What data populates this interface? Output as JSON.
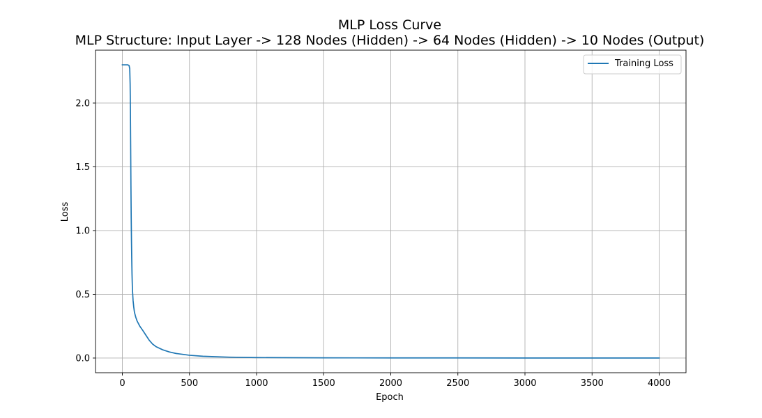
{
  "chart_data": {
    "type": "line",
    "title": "MLP Loss Curve",
    "subtitle": "MLP Structure: Input Layer -> 128 Nodes (Hidden) -> 64 Nodes (Hidden) -> 10 Nodes (Output)",
    "xlabel": "Epoch",
    "ylabel": "Loss",
    "xlim": [
      -200,
      4200
    ],
    "ylim": [
      -0.115,
      2.415
    ],
    "xticks": [
      0,
      500,
      1000,
      1500,
      2000,
      2500,
      3000,
      3500,
      4000
    ],
    "xtick_labels": [
      "0",
      "500",
      "1000",
      "1500",
      "2000",
      "2500",
      "3000",
      "3500",
      "4000"
    ],
    "yticks": [
      0.0,
      0.5,
      1.0,
      1.5,
      2.0
    ],
    "ytick_labels": [
      "0.0",
      "0.5",
      "1.0",
      "1.5",
      "2.0"
    ],
    "grid": true,
    "legend_position": "top-right",
    "series": [
      {
        "name": "Training Loss",
        "color": "#1f77b4",
        "x": [
          0,
          20,
          40,
          50,
          55,
          58,
          60,
          62,
          64,
          66,
          68,
          70,
          72,
          75,
          80,
          85,
          90,
          100,
          110,
          120,
          130,
          150,
          175,
          200,
          225,
          250,
          300,
          350,
          400,
          500,
          600,
          700,
          800,
          1000,
          1200,
          1500,
          2000,
          2500,
          3000,
          3500,
          4000
        ],
        "y": [
          2.3,
          2.3,
          2.3,
          2.295,
          2.27,
          2.15,
          1.95,
          1.65,
          1.35,
          1.1,
          0.92,
          0.78,
          0.66,
          0.54,
          0.45,
          0.4,
          0.36,
          0.32,
          0.29,
          0.27,
          0.25,
          0.22,
          0.18,
          0.14,
          0.11,
          0.09,
          0.065,
          0.048,
          0.036,
          0.022,
          0.014,
          0.01,
          0.007,
          0.004,
          0.003,
          0.002,
          0.001,
          0.001,
          0.0005,
          0.0004,
          0.0003
        ]
      }
    ]
  }
}
